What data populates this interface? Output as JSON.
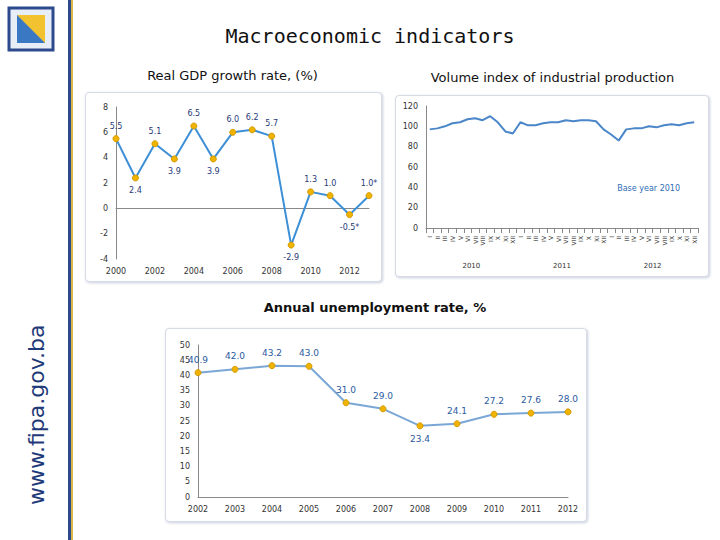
{
  "title": "Macroeconomic indicators",
  "source": "www.fipa.gov.ba",
  "chart_data": [
    {
      "type": "line",
      "title": "Real GDP growth rate,  (%)",
      "categories": [
        "2000",
        null,
        "2002",
        null,
        "2004",
        null,
        "2006",
        null,
        "2008",
        null,
        "2010",
        null,
        "2012",
        null
      ],
      "values": [
        5.5,
        2.4,
        5.1,
        3.9,
        6.5,
        3.9,
        6.0,
        6.2,
        5.7,
        -2.9,
        1.3,
        1.0,
        -0.5,
        1.0
      ],
      "value_labels": [
        "5.5",
        "2.4",
        "5.1",
        "3.9",
        "6.5",
        "3.9",
        "6.0",
        "6.2",
        "5.7",
        "-2.9",
        "1.3",
        "1.0",
        "-0.5*",
        "1.0*"
      ],
      "data_labels": true,
      "color": "#3d8fd6",
      "marker": "circle",
      "ylim": [
        -4,
        8
      ],
      "yticks": [
        -4,
        -2,
        0,
        2,
        4,
        6,
        8
      ],
      "grid": false
    },
    {
      "type": "line",
      "title": "Volume index of industrial production",
      "categories": [
        "I",
        "II",
        "III",
        "IV",
        "V",
        "VI",
        "VII",
        "VIII",
        "IX",
        "X",
        "XI",
        "XII",
        "I",
        "II",
        "III",
        "IV",
        "V",
        "VI",
        "VII",
        "VIII",
        "IX",
        "X",
        "XI",
        "XII",
        "I",
        "II",
        "III",
        "IV",
        "V",
        "VI",
        "VII",
        "VIII",
        "IX",
        "X",
        "XI",
        "XII"
      ],
      "groups": [
        "2010",
        "2011",
        "2012"
      ],
      "values": [
        97,
        98,
        100,
        103,
        104,
        107,
        108,
        106,
        110,
        104,
        95,
        93,
        104,
        101,
        101,
        103,
        104,
        104,
        106,
        105,
        106,
        106,
        105,
        97,
        92,
        86,
        97,
        98,
        98,
        100,
        99,
        101,
        102,
        101,
        103,
        104
      ],
      "annotation": "Base year 2010",
      "data_labels": false,
      "color": "#4a86c8",
      "marker": "none",
      "ylim": [
        0,
        120
      ],
      "yticks": [
        0,
        20,
        40,
        60,
        80,
        100,
        120
      ],
      "grid": false
    },
    {
      "type": "line",
      "title": "Annual unemployment rate, %",
      "categories": [
        "2002",
        "2003",
        "2004",
        "2005",
        "2006",
        "2007",
        "2008",
        "2009",
        "2010",
        "2011",
        "2012"
      ],
      "values": [
        40.9,
        42.0,
        43.2,
        43.0,
        31.0,
        29.0,
        23.4,
        24.1,
        27.2,
        27.6,
        28.0
      ],
      "value_labels": [
        "40.9",
        "42.0",
        "43.2",
        "43.0",
        "31.0",
        "29.0",
        "23.4",
        "24.1",
        "27.2",
        "27.6",
        "28.0"
      ],
      "data_labels": true,
      "color": "#7aa7d6",
      "marker": "circle",
      "ylim": [
        0,
        50
      ],
      "yticks": [
        0,
        5,
        10,
        15,
        20,
        25,
        30,
        35,
        40,
        45,
        50
      ],
      "grid": false
    }
  ]
}
